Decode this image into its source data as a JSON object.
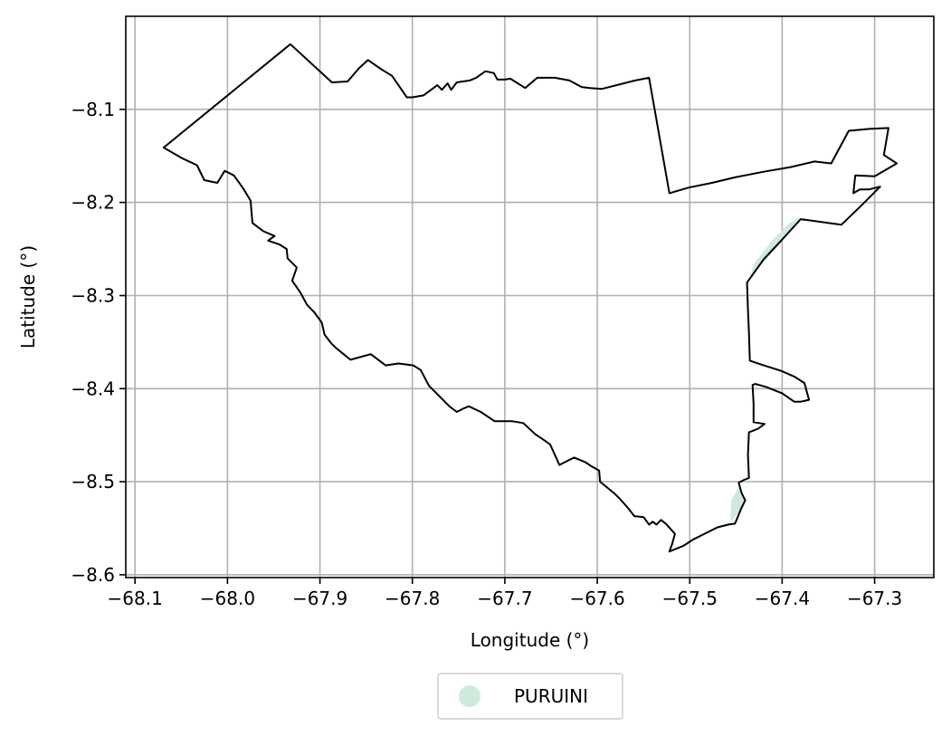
{
  "chart_data": {
    "type": "map",
    "title": "",
    "xlabel": "Longitude (°)",
    "ylabel": "Latitude (°)",
    "xlim": [
      -68.11,
      -67.236
    ],
    "ylim": [
      -8.603,
      -8.0
    ],
    "xticks": [
      -68.1,
      -68.0,
      -67.9,
      -67.8,
      -67.7,
      -67.6,
      -67.5,
      -67.4,
      -67.3
    ],
    "xtick_labels": [
      "−68.1",
      "−68.0",
      "−67.9",
      "−67.8",
      "−67.7",
      "−67.6",
      "−67.5",
      "−67.4",
      "−67.3"
    ],
    "yticks": [
      -8.1,
      -8.2,
      -8.3,
      -8.4,
      -8.5,
      -8.6
    ],
    "ytick_labels": [
      "−8.1",
      "−8.2",
      "−8.3",
      "−8.4",
      "−8.5",
      "−8.6"
    ],
    "grid": true,
    "legend": {
      "placement": "bottom-center",
      "entries": [
        {
          "label": "PURUINI",
          "color": "#cfeadd"
        }
      ]
    },
    "colors": {
      "boundary": "#000000",
      "fill": "#cfeadd",
      "grid": "#b0b0b0"
    },
    "boundary": [
      [
        -67.932,
        -8.03
      ],
      [
        -67.887,
        -8.071
      ],
      [
        -67.87,
        -8.07
      ],
      [
        -67.858,
        -8.056
      ],
      [
        -67.848,
        -8.047
      ],
      [
        -67.835,
        -8.056
      ],
      [
        -67.822,
        -8.064
      ],
      [
        -67.806,
        -8.087
      ],
      [
        -67.8,
        -8.087
      ],
      [
        -67.788,
        -8.085
      ],
      [
        -67.773,
        -8.074
      ],
      [
        -67.768,
        -8.079
      ],
      [
        -67.762,
        -8.072
      ],
      [
        -67.758,
        -8.079
      ],
      [
        -67.752,
        -8.071
      ],
      [
        -67.738,
        -8.069
      ],
      [
        -67.731,
        -8.066
      ],
      [
        -67.721,
        -8.059
      ],
      [
        -67.712,
        -8.061
      ],
      [
        -67.708,
        -8.068
      ],
      [
        -67.7,
        -8.068
      ],
      [
        -67.694,
        -8.067
      ],
      [
        -67.678,
        -8.077
      ],
      [
        -67.665,
        -8.066
      ],
      [
        -67.646,
        -8.066
      ],
      [
        -67.63,
        -8.069
      ],
      [
        -67.617,
        -8.076
      ],
      [
        -67.608,
        -8.077
      ],
      [
        -67.595,
        -8.078
      ],
      [
        -67.559,
        -8.069
      ],
      [
        -67.544,
        -8.066
      ],
      [
        -67.522,
        -8.19
      ],
      [
        -67.501,
        -8.184
      ],
      [
        -67.476,
        -8.179
      ],
      [
        -67.451,
        -8.173
      ],
      [
        -67.42,
        -8.167
      ],
      [
        -67.391,
        -8.162
      ],
      [
        -67.365,
        -8.156
      ],
      [
        -67.347,
        -8.158
      ],
      [
        -67.328,
        -8.123
      ],
      [
        -67.306,
        -8.121
      ],
      [
        -67.285,
        -8.12
      ],
      [
        -67.29,
        -8.149
      ],
      [
        -67.276,
        -8.158
      ],
      [
        -67.3,
        -8.172
      ],
      [
        -67.321,
        -8.171
      ],
      [
        -67.323,
        -8.19
      ],
      [
        -67.316,
        -8.186
      ],
      [
        -67.306,
        -8.186
      ],
      [
        -67.294,
        -8.183
      ],
      [
        -67.313,
        -8.202
      ],
      [
        -67.336,
        -8.224
      ],
      [
        -67.38,
        -8.218
      ],
      [
        -67.402,
        -8.242
      ],
      [
        -67.42,
        -8.261
      ],
      [
        -67.438,
        -8.286
      ],
      [
        -67.437,
        -8.315
      ],
      [
        -67.436,
        -8.34
      ],
      [
        -67.435,
        -8.37
      ],
      [
        -67.42,
        -8.375
      ],
      [
        -67.401,
        -8.381
      ],
      [
        -67.387,
        -8.387
      ],
      [
        -67.376,
        -8.394
      ],
      [
        -67.374,
        -8.401
      ],
      [
        -67.371,
        -8.412
      ],
      [
        -67.375,
        -8.413
      ],
      [
        -67.38,
        -8.414
      ],
      [
        -67.387,
        -8.414
      ],
      [
        -67.4,
        -8.405
      ],
      [
        -67.418,
        -8.398
      ],
      [
        -67.429,
        -8.395
      ],
      [
        -67.432,
        -8.396
      ],
      [
        -67.431,
        -8.416
      ],
      [
        -67.431,
        -8.436
      ],
      [
        -67.419,
        -8.438
      ],
      [
        -67.426,
        -8.443
      ],
      [
        -67.436,
        -8.447
      ],
      [
        -67.437,
        -8.471
      ],
      [
        -67.436,
        -8.496
      ],
      [
        -67.441,
        -8.498
      ],
      [
        -67.447,
        -8.501
      ],
      [
        -67.444,
        -8.512
      ],
      [
        -67.44,
        -8.52
      ],
      [
        -67.444,
        -8.528
      ],
      [
        -67.451,
        -8.545
      ],
      [
        -67.458,
        -8.546
      ],
      [
        -67.47,
        -8.549
      ],
      [
        -67.482,
        -8.555
      ],
      [
        -67.496,
        -8.562
      ],
      [
        -67.507,
        -8.569
      ],
      [
        -67.522,
        -8.575
      ],
      [
        -67.519,
        -8.567
      ],
      [
        -67.516,
        -8.556
      ],
      [
        -67.525,
        -8.546
      ],
      [
        -67.531,
        -8.541
      ],
      [
        -67.536,
        -8.546
      ],
      [
        -67.54,
        -8.543
      ],
      [
        -67.544,
        -8.546
      ],
      [
        -67.55,
        -8.538
      ],
      [
        -67.56,
        -8.537
      ],
      [
        -67.567,
        -8.528
      ],
      [
        -67.575,
        -8.519
      ],
      [
        -67.581,
        -8.513
      ],
      [
        -67.597,
        -8.5
      ],
      [
        -67.598,
        -8.488
      ],
      [
        -67.607,
        -8.483
      ],
      [
        -67.613,
        -8.479
      ],
      [
        -67.625,
        -8.474
      ],
      [
        -67.635,
        -8.479
      ],
      [
        -67.641,
        -8.482
      ],
      [
        -67.645,
        -8.473
      ],
      [
        -67.651,
        -8.46
      ],
      [
        -67.658,
        -8.455
      ],
      [
        -67.667,
        -8.449
      ],
      [
        -67.68,
        -8.437
      ],
      [
        -67.692,
        -8.435
      ],
      [
        -67.711,
        -8.435
      ],
      [
        -67.726,
        -8.425
      ],
      [
        -67.739,
        -8.419
      ],
      [
        -67.744,
        -8.421
      ],
      [
        -67.752,
        -8.425
      ],
      [
        -67.76,
        -8.419
      ],
      [
        -67.771,
        -8.408
      ],
      [
        -67.782,
        -8.397
      ],
      [
        -67.791,
        -8.38
      ],
      [
        -67.799,
        -8.375
      ],
      [
        -67.815,
        -8.373
      ],
      [
        -67.829,
        -8.375
      ],
      [
        -67.845,
        -8.363
      ],
      [
        -67.867,
        -8.369
      ],
      [
        -67.883,
        -8.356
      ],
      [
        -67.888,
        -8.351
      ],
      [
        -67.895,
        -8.342
      ],
      [
        -67.898,
        -8.329
      ],
      [
        -67.906,
        -8.318
      ],
      [
        -67.914,
        -8.31
      ],
      [
        -67.921,
        -8.297
      ],
      [
        -67.93,
        -8.284
      ],
      [
        -67.925,
        -8.27
      ],
      [
        -67.935,
        -8.26
      ],
      [
        -67.936,
        -8.25
      ],
      [
        -67.944,
        -8.245
      ],
      [
        -67.956,
        -8.241
      ],
      [
        -67.949,
        -8.236
      ],
      [
        -67.961,
        -8.231
      ],
      [
        -67.973,
        -8.222
      ],
      [
        -67.975,
        -8.198
      ],
      [
        -67.983,
        -8.185
      ],
      [
        -67.993,
        -8.171
      ],
      [
        -68.003,
        -8.166
      ],
      [
        -68.011,
        -8.179
      ],
      [
        -68.025,
        -8.176
      ],
      [
        -68.033,
        -8.16
      ],
      [
        -68.05,
        -8.152
      ],
      [
        -68.069,
        -8.141
      ]
    ],
    "shaded_areas": [
      [
        [
          -67.43,
          -8.265
        ],
        [
          -67.41,
          -8.24
        ],
        [
          -67.392,
          -8.222
        ],
        [
          -67.38,
          -8.215
        ],
        [
          -67.405,
          -8.247
        ],
        [
          -67.421,
          -8.265
        ],
        [
          -67.436,
          -8.282
        ]
      ],
      [
        [
          -67.455,
          -8.52
        ],
        [
          -67.447,
          -8.505
        ],
        [
          -67.44,
          -8.52
        ],
        [
          -67.445,
          -8.53
        ],
        [
          -67.456,
          -8.544
        ]
      ]
    ]
  }
}
